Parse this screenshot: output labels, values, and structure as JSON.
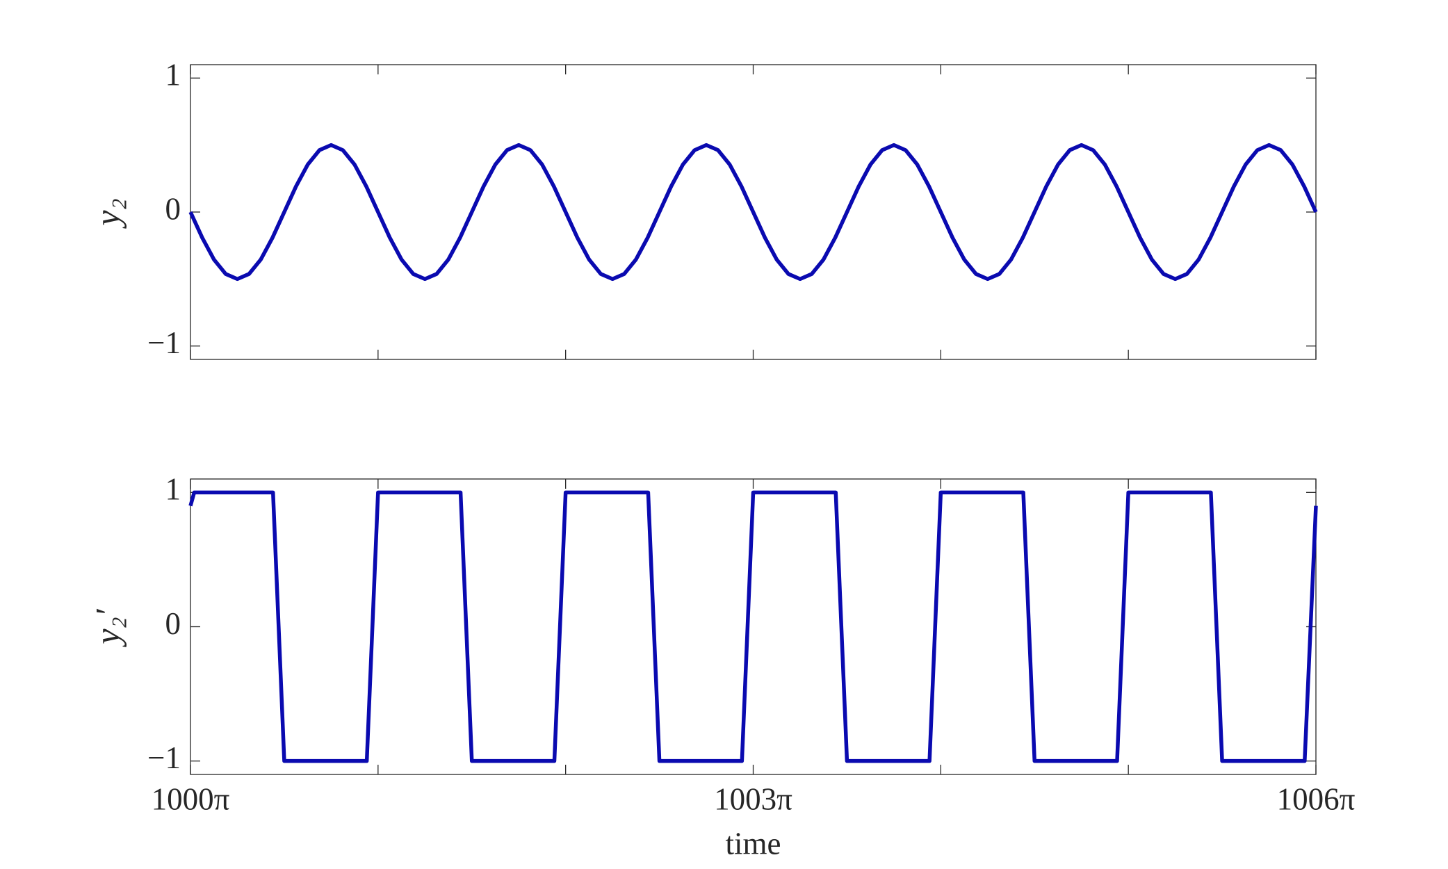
{
  "chart_data": [
    {
      "type": "line",
      "ylabel": "y₂",
      "color": "#0a0ab0",
      "xlim": [
        1000,
        1006
      ],
      "ylim": [
        -1.1,
        1.1
      ],
      "yticks": [
        {
          "value": -1,
          "label": "−1"
        },
        0,
        1
      ],
      "xminorticks": [
        1000,
        1001,
        1002,
        1003,
        1004,
        1005,
        1006
      ],
      "x": [
        1000,
        1000.0625,
        1000.125,
        1000.1875,
        1000.25,
        1000.3125,
        1000.375,
        1000.4375,
        1000.5,
        1000.5625,
        1000.625,
        1000.6875,
        1000.75,
        1000.8125,
        1000.875,
        1000.9375,
        1001,
        1001.0625,
        1001.125,
        1001.1875,
        1001.25,
        1001.3125,
        1001.375,
        1001.4375,
        1001.5,
        1001.5625,
        1001.625,
        1001.6875,
        1001.75,
        1001.8125,
        1001.875,
        1001.9375,
        1002,
        1002.0625,
        1002.125,
        1002.1875,
        1002.25,
        1002.3125,
        1002.375,
        1002.4375,
        1002.5,
        1002.5625,
        1002.625,
        1002.6875,
        1002.75,
        1002.8125,
        1002.875,
        1002.9375,
        1003,
        1003.0625,
        1003.125,
        1003.1875,
        1003.25,
        1003.3125,
        1003.375,
        1003.4375,
        1003.5,
        1003.5625,
        1003.625,
        1003.6875,
        1003.75,
        1003.8125,
        1003.875,
        1003.9375,
        1004,
        1004.0625,
        1004.125,
        1004.1875,
        1004.25,
        1004.3125,
        1004.375,
        1004.4375,
        1004.5,
        1004.5625,
        1004.625,
        1004.6875,
        1004.75,
        1004.8125,
        1004.875,
        1004.9375,
        1005,
        1005.0625,
        1005.125,
        1005.1875,
        1005.25,
        1005.3125,
        1005.375,
        1005.4375,
        1005.5,
        1005.5625,
        1005.625,
        1005.6875,
        1005.75,
        1005.8125,
        1005.875,
        1005.9375,
        1006
      ],
      "values": [
        0,
        -0.191,
        -0.354,
        -0.462,
        -0.5,
        -0.462,
        -0.354,
        -0.191,
        0,
        0.191,
        0.354,
        0.462,
        0.5,
        0.462,
        0.354,
        0.191,
        0,
        -0.191,
        -0.354,
        -0.462,
        -0.5,
        -0.462,
        -0.354,
        -0.191,
        0,
        0.191,
        0.354,
        0.462,
        0.5,
        0.462,
        0.354,
        0.191,
        0,
        -0.191,
        -0.354,
        -0.462,
        -0.5,
        -0.462,
        -0.354,
        -0.191,
        0,
        0.191,
        0.354,
        0.462,
        0.5,
        0.462,
        0.354,
        0.191,
        0,
        -0.191,
        -0.354,
        -0.462,
        -0.5,
        -0.462,
        -0.354,
        -0.191,
        0,
        0.191,
        0.354,
        0.462,
        0.5,
        0.462,
        0.354,
        0.191,
        0,
        -0.191,
        -0.354,
        -0.462,
        -0.5,
        -0.462,
        -0.354,
        -0.191,
        0,
        0.191,
        0.354,
        0.462,
        0.5,
        0.462,
        0.354,
        0.191,
        0,
        -0.191,
        -0.354,
        -0.462,
        -0.5,
        -0.462,
        -0.354,
        -0.191,
        0,
        0.191,
        0.354,
        0.462,
        0.5,
        0.462,
        0.354,
        0.191,
        0
      ]
    },
    {
      "type": "line",
      "ylabel": "y₂′",
      "xlabel": "time",
      "color": "#0a0ab0",
      "xlim": [
        1000,
        1006
      ],
      "ylim": [
        -1.1,
        1.1
      ],
      "yticks": [
        {
          "value": -1,
          "label": "−1"
        },
        0,
        1
      ],
      "xticks": [
        {
          "value": 1000,
          "label": "1000π"
        },
        {
          "value": 1003,
          "label": "1003π"
        },
        {
          "value": 1006,
          "label": "1006π"
        }
      ],
      "xminorticks": [
        1001,
        1002,
        1004,
        1005
      ],
      "x": [
        1000,
        1000.02,
        1000.44,
        1000.5,
        1000.94,
        1001,
        1001.44,
        1001.5,
        1001.94,
        1002,
        1002.44,
        1002.5,
        1002.94,
        1003,
        1003.44,
        1003.5,
        1003.94,
        1004,
        1004.44,
        1004.5,
        1004.94,
        1005,
        1005.44,
        1005.5,
        1005.94,
        1006
      ],
      "values": [
        0.9,
        1,
        1,
        -1,
        -1,
        1,
        1,
        -1,
        -1,
        1,
        1,
        -1,
        -1,
        1,
        1,
        -1,
        -1,
        1,
        1,
        -1,
        -1,
        1,
        1,
        -1,
        -1,
        0.9
      ]
    }
  ]
}
